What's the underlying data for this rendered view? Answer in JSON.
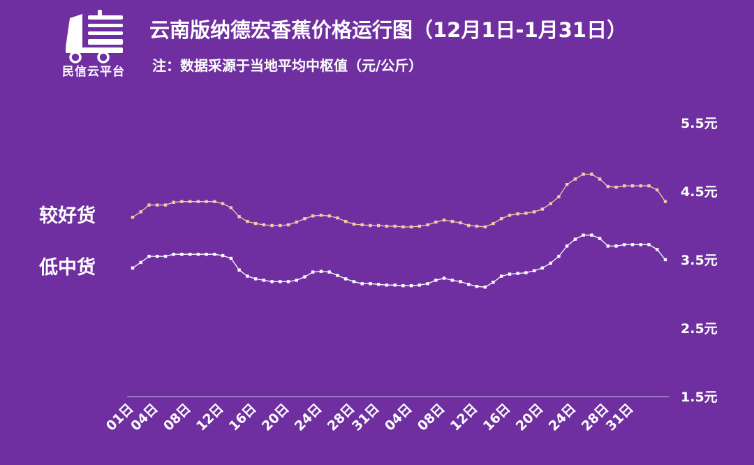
{
  "header": {
    "logo_text": "民信云平台",
    "title": "云南版纳德宏香蕉价格运行图（12月1日-1月31日）",
    "subtitle": "注：数据采源于当地平均中枢值（元/公斤）"
  },
  "colors": {
    "background": "#6f2fa0",
    "good_line": "#f4c9a6",
    "low_line": "#ffffff",
    "axis": "#cfc3e6"
  },
  "chart_data": {
    "type": "line",
    "title": "云南版纳德宏香蕉价格运行图（12月1日-1月31日）",
    "ylim": [
      1.5,
      5.5
    ],
    "ytick_labels": [
      "5.5元",
      "4.5元",
      "3.5元",
      "2.5元",
      "1.5元"
    ],
    "ytick_values": [
      5.5,
      4.5,
      3.5,
      2.5,
      1.5
    ],
    "x_tick_labels": [
      "01日",
      "04日",
      "08日",
      "12日",
      "16日",
      "20日",
      "24日",
      "28日",
      "31日",
      "04日",
      "08日",
      "12日",
      "16日",
      "20日",
      "24日",
      "28日",
      "31日"
    ],
    "x_tick_indices": [
      0,
      3,
      7,
      11,
      15,
      19,
      23,
      27,
      30,
      34,
      38,
      42,
      46,
      50,
      54,
      58,
      61
    ],
    "series": [
      {
        "name": "较好货",
        "values": [
          4.12,
          4.2,
          4.3,
          4.3,
          4.3,
          4.34,
          4.35,
          4.35,
          4.35,
          4.35,
          4.35,
          4.32,
          4.26,
          4.13,
          4.06,
          4.03,
          4.01,
          4.0,
          4.0,
          4.01,
          4.05,
          4.1,
          4.14,
          4.15,
          4.14,
          4.11,
          4.06,
          4.02,
          4.01,
          4.0,
          4.0,
          3.99,
          3.99,
          3.98,
          3.98,
          3.99,
          4.01,
          4.05,
          4.08,
          4.06,
          4.04,
          4.0,
          3.99,
          3.98,
          4.03,
          4.1,
          4.15,
          4.17,
          4.18,
          4.2,
          4.24,
          4.32,
          4.42,
          4.6,
          4.68,
          4.75,
          4.75,
          4.68,
          4.57,
          4.56,
          4.58,
          4.58,
          4.58,
          4.58,
          4.52,
          4.35
        ]
      },
      {
        "name": "低中货",
        "values": [
          3.38,
          3.46,
          3.55,
          3.55,
          3.55,
          3.58,
          3.58,
          3.58,
          3.58,
          3.58,
          3.58,
          3.56,
          3.52,
          3.35,
          3.26,
          3.22,
          3.2,
          3.18,
          3.18,
          3.18,
          3.2,
          3.25,
          3.32,
          3.33,
          3.32,
          3.27,
          3.22,
          3.18,
          3.15,
          3.15,
          3.14,
          3.13,
          3.13,
          3.12,
          3.12,
          3.13,
          3.15,
          3.2,
          3.23,
          3.2,
          3.18,
          3.14,
          3.11,
          3.1,
          3.17,
          3.26,
          3.29,
          3.3,
          3.31,
          3.34,
          3.38,
          3.45,
          3.55,
          3.7,
          3.8,
          3.86,
          3.86,
          3.81,
          3.7,
          3.7,
          3.72,
          3.72,
          3.72,
          3.72,
          3.65,
          3.5
        ]
      }
    ]
  }
}
